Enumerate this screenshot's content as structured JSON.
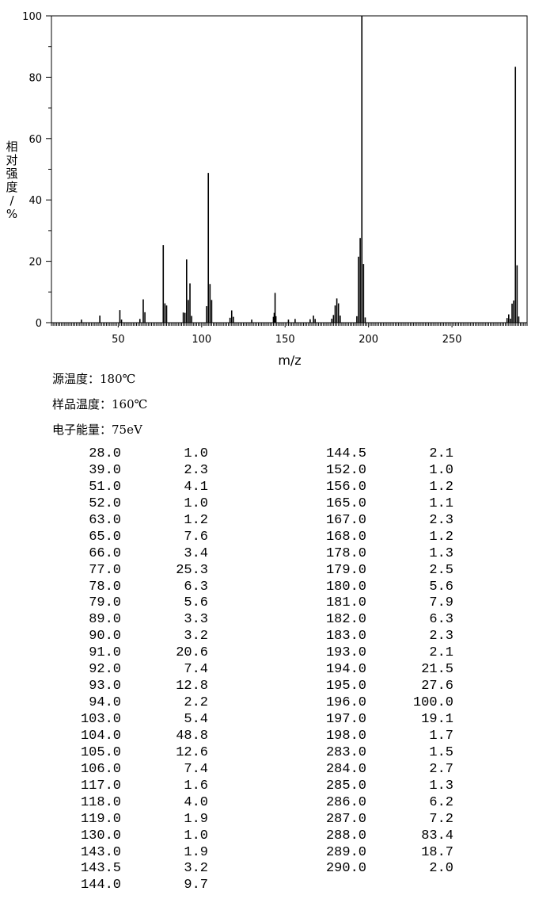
{
  "chart_data": {
    "type": "bar",
    "xlabel": "m/z",
    "ylabel": "相对强度/%",
    "xlim": [
      10,
      295
    ],
    "ylim": [
      0,
      100
    ],
    "xticks": [
      50,
      100,
      150,
      200,
      250
    ],
    "yticks": [
      0,
      20,
      40,
      60,
      80,
      100
    ],
    "peaks": [
      {
        "x": 28.0,
        "y": 1.0
      },
      {
        "x": 39.0,
        "y": 2.3
      },
      {
        "x": 51.0,
        "y": 4.1
      },
      {
        "x": 52.0,
        "y": 1.0
      },
      {
        "x": 63.0,
        "y": 1.2
      },
      {
        "x": 65.0,
        "y": 7.6
      },
      {
        "x": 66.0,
        "y": 3.4
      },
      {
        "x": 77.0,
        "y": 25.3
      },
      {
        "x": 78.0,
        "y": 6.3
      },
      {
        "x": 79.0,
        "y": 5.6
      },
      {
        "x": 89.0,
        "y": 3.3
      },
      {
        "x": 90.0,
        "y": 3.2
      },
      {
        "x": 91.0,
        "y": 20.6
      },
      {
        "x": 92.0,
        "y": 7.4
      },
      {
        "x": 93.0,
        "y": 12.8
      },
      {
        "x": 94.0,
        "y": 2.2
      },
      {
        "x": 103.0,
        "y": 5.4
      },
      {
        "x": 104.0,
        "y": 48.8
      },
      {
        "x": 105.0,
        "y": 12.6
      },
      {
        "x": 106.0,
        "y": 7.4
      },
      {
        "x": 117.0,
        "y": 1.6
      },
      {
        "x": 118.0,
        "y": 4.0
      },
      {
        "x": 119.0,
        "y": 1.9
      },
      {
        "x": 130.0,
        "y": 1.0
      },
      {
        "x": 143.0,
        "y": 1.9
      },
      {
        "x": 143.5,
        "y": 3.2
      },
      {
        "x": 144.0,
        "y": 9.7
      },
      {
        "x": 144.5,
        "y": 2.1
      },
      {
        "x": 152.0,
        "y": 1.0
      },
      {
        "x": 156.0,
        "y": 1.2
      },
      {
        "x": 165.0,
        "y": 1.1
      },
      {
        "x": 167.0,
        "y": 2.3
      },
      {
        "x": 168.0,
        "y": 1.2
      },
      {
        "x": 178.0,
        "y": 1.3
      },
      {
        "x": 179.0,
        "y": 2.5
      },
      {
        "x": 180.0,
        "y": 5.6
      },
      {
        "x": 181.0,
        "y": 7.9
      },
      {
        "x": 182.0,
        "y": 6.3
      },
      {
        "x": 183.0,
        "y": 2.3
      },
      {
        "x": 193.0,
        "y": 2.1
      },
      {
        "x": 194.0,
        "y": 21.5
      },
      {
        "x": 195.0,
        "y": 27.6
      },
      {
        "x": 196.0,
        "y": 100.0
      },
      {
        "x": 197.0,
        "y": 19.1
      },
      {
        "x": 198.0,
        "y": 1.7
      },
      {
        "x": 283.0,
        "y": 1.5
      },
      {
        "x": 284.0,
        "y": 2.7
      },
      {
        "x": 285.0,
        "y": 1.3
      },
      {
        "x": 286.0,
        "y": 6.2
      },
      {
        "x": 287.0,
        "y": 7.2
      },
      {
        "x": 288.0,
        "y": 83.4
      },
      {
        "x": 289.0,
        "y": 18.7
      },
      {
        "x": 290.0,
        "y": 2.0
      }
    ]
  },
  "conditions": {
    "source_temp": "源温度：180℃",
    "sample_temp": "样品温度：160℃",
    "electron_energy": "电子能量：75eV"
  },
  "peak_table": {
    "left": [
      [
        "28.0",
        "1.0"
      ],
      [
        "39.0",
        "2.3"
      ],
      [
        "51.0",
        "4.1"
      ],
      [
        "52.0",
        "1.0"
      ],
      [
        "63.0",
        "1.2"
      ],
      [
        "65.0",
        "7.6"
      ],
      [
        "66.0",
        "3.4"
      ],
      [
        "77.0",
        "25.3"
      ],
      [
        "78.0",
        "6.3"
      ],
      [
        "79.0",
        "5.6"
      ],
      [
        "89.0",
        "3.3"
      ],
      [
        "90.0",
        "3.2"
      ],
      [
        "91.0",
        "20.6"
      ],
      [
        "92.0",
        "7.4"
      ],
      [
        "93.0",
        "12.8"
      ],
      [
        "94.0",
        "2.2"
      ],
      [
        "103.0",
        "5.4"
      ],
      [
        "104.0",
        "48.8"
      ],
      [
        "105.0",
        "12.6"
      ],
      [
        "106.0",
        "7.4"
      ],
      [
        "117.0",
        "1.6"
      ],
      [
        "118.0",
        "4.0"
      ],
      [
        "119.0",
        "1.9"
      ],
      [
        "130.0",
        "1.0"
      ],
      [
        "143.0",
        "1.9"
      ],
      [
        "143.5",
        "3.2"
      ],
      [
        "144.0",
        "9.7"
      ]
    ],
    "right": [
      [
        "144.5",
        "2.1"
      ],
      [
        "152.0",
        "1.0"
      ],
      [
        "156.0",
        "1.2"
      ],
      [
        "165.0",
        "1.1"
      ],
      [
        "167.0",
        "2.3"
      ],
      [
        "168.0",
        "1.2"
      ],
      [
        "178.0",
        "1.3"
      ],
      [
        "179.0",
        "2.5"
      ],
      [
        "180.0",
        "5.6"
      ],
      [
        "181.0",
        "7.9"
      ],
      [
        "182.0",
        "6.3"
      ],
      [
        "183.0",
        "2.3"
      ],
      [
        "193.0",
        "2.1"
      ],
      [
        "194.0",
        "21.5"
      ],
      [
        "195.0",
        "27.6"
      ],
      [
        "196.0",
        "100.0"
      ],
      [
        "197.0",
        "19.1"
      ],
      [
        "198.0",
        "1.7"
      ],
      [
        "283.0",
        "1.5"
      ],
      [
        "284.0",
        "2.7"
      ],
      [
        "285.0",
        "1.3"
      ],
      [
        "286.0",
        "6.2"
      ],
      [
        "287.0",
        "7.2"
      ],
      [
        "288.0",
        "83.4"
      ],
      [
        "289.0",
        "18.7"
      ],
      [
        "290.0",
        "2.0"
      ]
    ]
  }
}
